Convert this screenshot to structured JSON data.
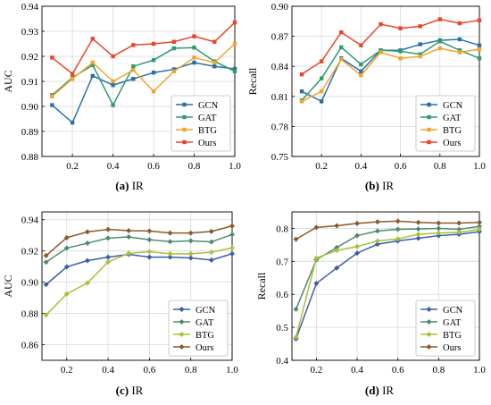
{
  "chart_data": [
    {
      "type": "line",
      "caption_label": "(a)",
      "caption_text": "IR",
      "title": "",
      "xlabel": "",
      "ylabel": "AUC",
      "xlim": [
        0.05,
        1.0
      ],
      "ylim": [
        0.88,
        0.94
      ],
      "xticks": [
        0.2,
        0.4,
        0.6,
        0.8,
        1.0
      ],
      "xtick_labels": [
        "0.2",
        "0.4",
        "0.6",
        "0.8",
        "1.0"
      ],
      "yticks": [
        0.88,
        0.89,
        0.9,
        0.91,
        0.92,
        0.93,
        0.94
      ],
      "ytick_labels": [
        "0.88",
        "0.89",
        "0.90",
        "0.91",
        "0.92",
        "0.93",
        "0.94"
      ],
      "grid": true,
      "legend_position": "bottom-right",
      "x": [
        0.1,
        0.2,
        0.3,
        0.4,
        0.5,
        0.6,
        0.7,
        0.8,
        0.9,
        1.0
      ],
      "series": [
        {
          "name": "GCN",
          "color": "#2a6fa8",
          "values": [
            0.9005,
            0.8935,
            0.9122,
            0.9085,
            0.911,
            0.9135,
            0.9148,
            0.9175,
            0.916,
            0.915
          ]
        },
        {
          "name": "GAT",
          "color": "#2e9a6e",
          "values": [
            0.9045,
            0.9115,
            0.9165,
            0.9005,
            0.916,
            0.9185,
            0.9232,
            0.9235,
            0.918,
            0.914
          ]
        },
        {
          "name": "BTG",
          "color": "#f0a52c",
          "values": [
            0.904,
            0.911,
            0.9175,
            0.91,
            0.9145,
            0.906,
            0.914,
            0.9195,
            0.9175,
            0.925
          ]
        },
        {
          "name": "Ours",
          "color": "#e8452c",
          "values": [
            0.9195,
            0.913,
            0.927,
            0.92,
            0.9245,
            0.925,
            0.9258,
            0.928,
            0.9258,
            0.9335
          ]
        }
      ]
    },
    {
      "type": "line",
      "caption_label": "(b)",
      "caption_text": "IR",
      "title": "",
      "xlabel": "",
      "ylabel": "Recall",
      "xlim": [
        0.05,
        1.0
      ],
      "ylim": [
        0.75,
        0.9
      ],
      "xticks": [
        0.2,
        0.4,
        0.6,
        0.8,
        1.0
      ],
      "xtick_labels": [
        "0.2",
        "0.4",
        "0.6",
        "0.8",
        "1.0"
      ],
      "yticks": [
        0.75,
        0.78,
        0.81,
        0.84,
        0.87,
        0.9
      ],
      "ytick_labels": [
        "0.75",
        "0.78",
        "0.81",
        "0.84",
        "0.87",
        "0.90"
      ],
      "grid": true,
      "legend_position": "bottom-right",
      "x": [
        0.1,
        0.2,
        0.3,
        0.4,
        0.5,
        0.6,
        0.7,
        0.8,
        0.9,
        1.0
      ],
      "series": [
        {
          "name": "GCN",
          "color": "#2a6fa8",
          "values": [
            0.815,
            0.805,
            0.848,
            0.835,
            0.856,
            0.856,
            0.862,
            0.866,
            0.867,
            0.861
          ]
        },
        {
          "name": "GAT",
          "color": "#2e9a6e",
          "values": [
            0.806,
            0.828,
            0.859,
            0.842,
            0.856,
            0.855,
            0.852,
            0.865,
            0.856,
            0.848
          ]
        },
        {
          "name": "BTG",
          "color": "#f0a52c",
          "values": [
            0.805,
            0.815,
            0.847,
            0.831,
            0.854,
            0.848,
            0.85,
            0.858,
            0.854,
            0.857
          ]
        },
        {
          "name": "Ours",
          "color": "#e8452c",
          "values": [
            0.832,
            0.845,
            0.874,
            0.861,
            0.882,
            0.878,
            0.88,
            0.887,
            0.883,
            0.886
          ]
        }
      ]
    },
    {
      "type": "line",
      "caption_label": "(c)",
      "caption_text": "IR",
      "title": "",
      "xlabel": "",
      "ylabel": "AUC",
      "xlim": [
        0.08,
        1.0
      ],
      "ylim": [
        0.85,
        0.945
      ],
      "xticks": [
        0.2,
        0.4,
        0.6,
        0.8,
        1.0
      ],
      "xtick_labels": [
        "0.2",
        "0.4",
        "0.6",
        "0.8",
        "1.0"
      ],
      "yticks": [
        0.86,
        0.88,
        0.9,
        0.92,
        0.94
      ],
      "ytick_labels": [
        "0.86",
        "0.88",
        "0.90",
        "0.92",
        "0.94"
      ],
      "grid": true,
      "legend_position": "bottom-right",
      "x": [
        0.1,
        0.2,
        0.3,
        0.4,
        0.5,
        0.6,
        0.7,
        0.8,
        0.9,
        1.0
      ],
      "series": [
        {
          "name": "GCN",
          "color": "#3b5ea8",
          "values": [
            0.8985,
            0.9098,
            0.9138,
            0.916,
            0.9178,
            0.916,
            0.916,
            0.9155,
            0.9142,
            0.9182
          ]
        },
        {
          "name": "GAT",
          "color": "#4e8a6e",
          "values": [
            0.9128,
            0.9218,
            0.925,
            0.9282,
            0.929,
            0.9272,
            0.926,
            0.9265,
            0.9258,
            0.9305
          ]
        },
        {
          "name": "BTG",
          "color": "#a8c038",
          "values": [
            0.879,
            0.8925,
            0.8995,
            0.913,
            0.9185,
            0.9195,
            0.9182,
            0.9182,
            0.9192,
            0.922
          ]
        },
        {
          "name": "Ours",
          "color": "#8b5a2b",
          "values": [
            0.917,
            0.9285,
            0.9322,
            0.9338,
            0.933,
            0.9328,
            0.9315,
            0.9315,
            0.9325,
            0.936
          ]
        }
      ]
    },
    {
      "type": "line",
      "caption_label": "(d)",
      "caption_text": "IR",
      "title": "",
      "xlabel": "",
      "ylabel": "Recall",
      "xlim": [
        0.08,
        1.0
      ],
      "ylim": [
        0.4,
        0.85
      ],
      "xticks": [
        0.2,
        0.4,
        0.6,
        0.8,
        1.0
      ],
      "xtick_labels": [
        "0.2",
        "0.4",
        "0.6",
        "0.8",
        "1.0"
      ],
      "yticks": [
        0.4,
        0.5,
        0.6,
        0.7,
        0.8
      ],
      "ytick_labels": [
        "0.4",
        "0.5",
        "0.6",
        "0.7",
        "0.8"
      ],
      "grid": true,
      "legend_position": "bottom-right",
      "x": [
        0.1,
        0.2,
        0.3,
        0.4,
        0.5,
        0.6,
        0.7,
        0.8,
        0.9,
        1.0
      ],
      "series": [
        {
          "name": "GCN",
          "color": "#3b5ea8",
          "values": [
            0.465,
            0.633,
            0.68,
            0.725,
            0.752,
            0.762,
            0.77,
            0.778,
            0.782,
            0.79
          ]
        },
        {
          "name": "GAT",
          "color": "#4e8a6e",
          "values": [
            0.555,
            0.705,
            0.742,
            0.778,
            0.792,
            0.797,
            0.798,
            0.8,
            0.797,
            0.806
          ]
        },
        {
          "name": "BTG",
          "color": "#a8c038",
          "values": [
            0.47,
            0.71,
            0.733,
            0.745,
            0.762,
            0.768,
            0.782,
            0.786,
            0.788,
            0.797
          ]
        },
        {
          "name": "Ours",
          "color": "#8b5a2b",
          "values": [
            0.767,
            0.803,
            0.808,
            0.815,
            0.82,
            0.822,
            0.818,
            0.816,
            0.816,
            0.818
          ]
        }
      ]
    }
  ]
}
